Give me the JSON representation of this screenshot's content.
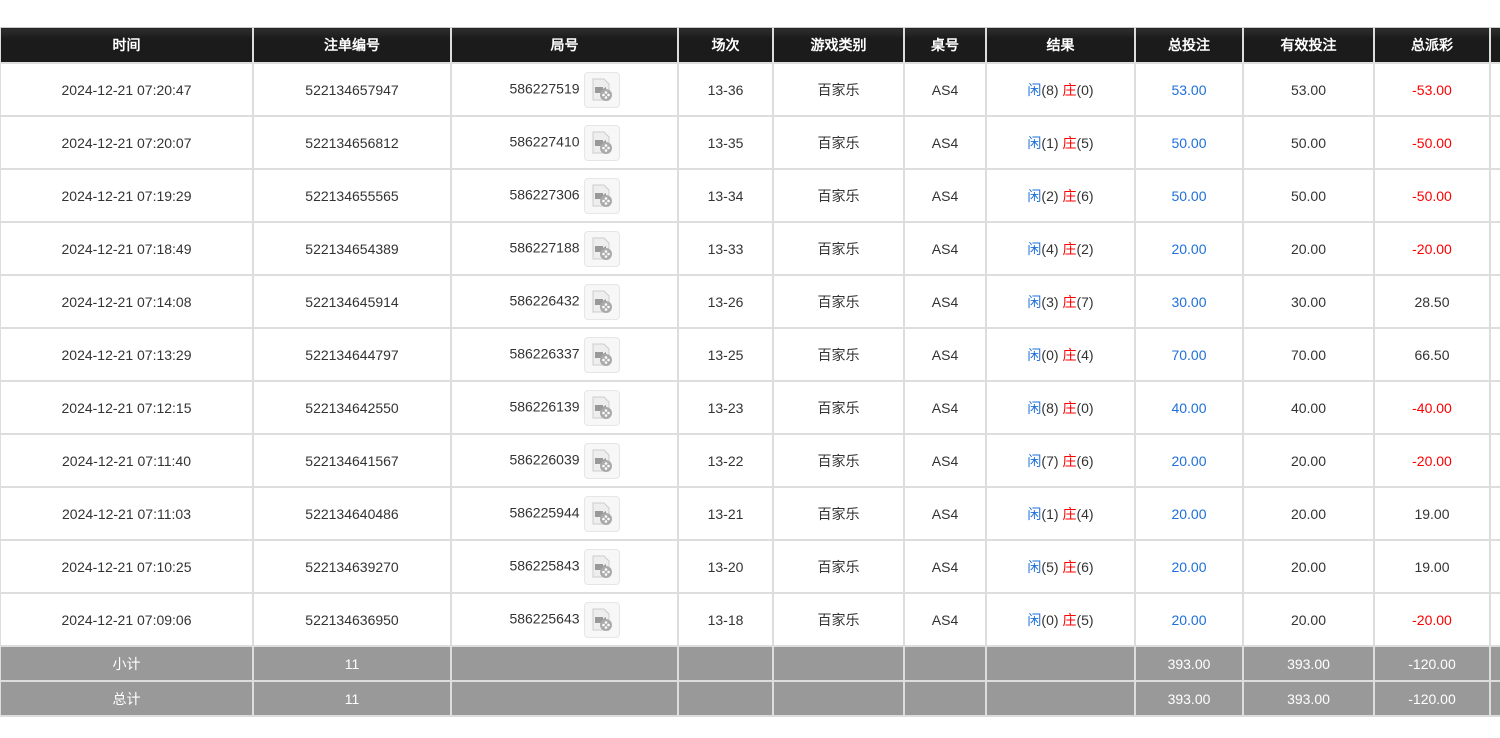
{
  "headers": [
    "时间",
    "注单编号",
    "局号",
    "场次",
    "游戏类别",
    "桌号",
    "结果",
    "总投注",
    "有效投注",
    "总派彩"
  ],
  "colors": {
    "header_bg": "#1b1b1b",
    "player": "#1e6fd9",
    "banker": "#ff0000",
    "negative": "#ff0000",
    "bet": "#1e6fd9",
    "footer_bg": "#999999"
  },
  "result_labels": {
    "player": "闲",
    "banker": "庄"
  },
  "rows": [
    {
      "time": "2024-12-21 07:20:47",
      "bet_id": "522134657947",
      "round": "586227519",
      "shoe": "13-36",
      "game": "百家乐",
      "table": "AS4",
      "player": "8",
      "banker": "0",
      "total_bet": "53.00",
      "valid_bet": "53.00",
      "payout": "-53.00"
    },
    {
      "time": "2024-12-21 07:20:07",
      "bet_id": "522134656812",
      "round": "586227410",
      "shoe": "13-35",
      "game": "百家乐",
      "table": "AS4",
      "player": "1",
      "banker": "5",
      "total_bet": "50.00",
      "valid_bet": "50.00",
      "payout": "-50.00"
    },
    {
      "time": "2024-12-21 07:19:29",
      "bet_id": "522134655565",
      "round": "586227306",
      "shoe": "13-34",
      "game": "百家乐",
      "table": "AS4",
      "player": "2",
      "banker": "6",
      "total_bet": "50.00",
      "valid_bet": "50.00",
      "payout": "-50.00"
    },
    {
      "time": "2024-12-21 07:18:49",
      "bet_id": "522134654389",
      "round": "586227188",
      "shoe": "13-33",
      "game": "百家乐",
      "table": "AS4",
      "player": "4",
      "banker": "2",
      "total_bet": "20.00",
      "valid_bet": "20.00",
      "payout": "-20.00"
    },
    {
      "time": "2024-12-21 07:14:08",
      "bet_id": "522134645914",
      "round": "586226432",
      "shoe": "13-26",
      "game": "百家乐",
      "table": "AS4",
      "player": "3",
      "banker": "7",
      "total_bet": "30.00",
      "valid_bet": "30.00",
      "payout": "28.50"
    },
    {
      "time": "2024-12-21 07:13:29",
      "bet_id": "522134644797",
      "round": "586226337",
      "shoe": "13-25",
      "game": "百家乐",
      "table": "AS4",
      "player": "0",
      "banker": "4",
      "total_bet": "70.00",
      "valid_bet": "70.00",
      "payout": "66.50"
    },
    {
      "time": "2024-12-21 07:12:15",
      "bet_id": "522134642550",
      "round": "586226139",
      "shoe": "13-23",
      "game": "百家乐",
      "table": "AS4",
      "player": "8",
      "banker": "0",
      "total_bet": "40.00",
      "valid_bet": "40.00",
      "payout": "-40.00"
    },
    {
      "time": "2024-12-21 07:11:40",
      "bet_id": "522134641567",
      "round": "586226039",
      "shoe": "13-22",
      "game": "百家乐",
      "table": "AS4",
      "player": "7",
      "banker": "6",
      "total_bet": "20.00",
      "valid_bet": "20.00",
      "payout": "-20.00"
    },
    {
      "time": "2024-12-21 07:11:03",
      "bet_id": "522134640486",
      "round": "586225944",
      "shoe": "13-21",
      "game": "百家乐",
      "table": "AS4",
      "player": "1",
      "banker": "4",
      "total_bet": "20.00",
      "valid_bet": "20.00",
      "payout": "19.00"
    },
    {
      "time": "2024-12-21 07:10:25",
      "bet_id": "522134639270",
      "round": "586225843",
      "shoe": "13-20",
      "game": "百家乐",
      "table": "AS4",
      "player": "5",
      "banker": "6",
      "total_bet": "20.00",
      "valid_bet": "20.00",
      "payout": "19.00"
    },
    {
      "time": "2024-12-21 07:09:06",
      "bet_id": "522134636950",
      "round": "586225643",
      "shoe": "13-18",
      "game": "百家乐",
      "table": "AS4",
      "player": "0",
      "banker": "5",
      "total_bet": "20.00",
      "valid_bet": "20.00",
      "payout": "-20.00"
    }
  ],
  "subtotal": {
    "label": "小计",
    "count": "11",
    "total_bet": "393.00",
    "valid_bet": "393.00",
    "payout": "-120.00"
  },
  "total": {
    "label": "总计",
    "count": "11",
    "total_bet": "393.00",
    "valid_bet": "393.00",
    "payout": "-120.00"
  },
  "icons": {
    "replay": "video-replay-icon"
  }
}
